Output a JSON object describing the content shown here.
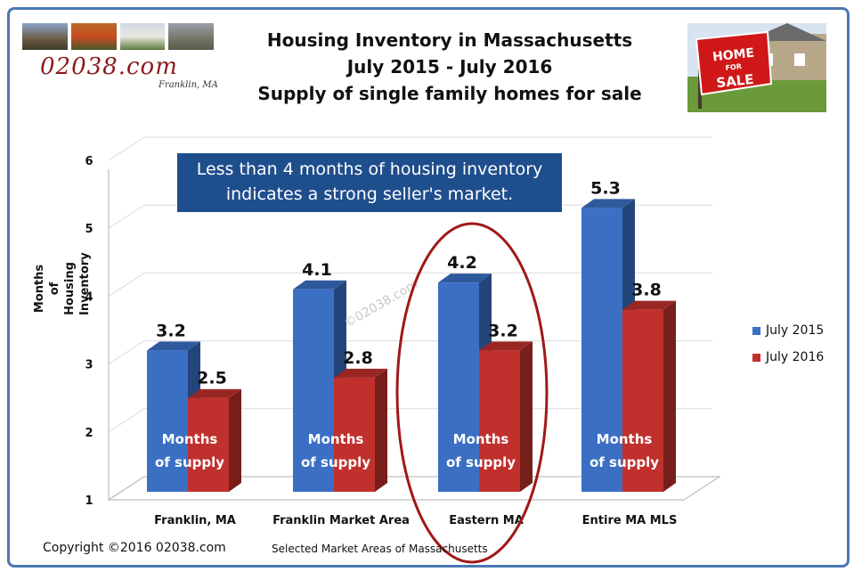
{
  "header": {
    "site_name": "02038.com",
    "site_location": "Franklin, MA",
    "sign_text": "HOME FOR SALE"
  },
  "chart_data": {
    "type": "bar",
    "title": "Housing Inventory in Massachusetts",
    "subtitle_1": "July 2015 - July 2016",
    "subtitle_2": "Supply of single family homes for sale",
    "categories": [
      "Franklin, MA",
      "Franklin Market Area",
      "Eastern MA",
      "Entire MA MLS"
    ],
    "series": [
      {
        "name": "July 2015",
        "values": [
          3.2,
          4.1,
          4.2,
          5.3
        ],
        "color": "#3a6fc4"
      },
      {
        "name": "July 2016",
        "values": [
          2.5,
          2.8,
          3.2,
          3.8
        ],
        "color": "#c0302c"
      }
    ],
    "ylabel": "Months of Housing Inventory",
    "xlabel": "Selected Market Areas of Massachusetts",
    "ylim": [
      1,
      6
    ],
    "yticks": [
      "1",
      "2",
      "3",
      "4",
      "5",
      "6"
    ],
    "bar_text": "Months of supply",
    "annotation": "Less than 4 months of housing inventory indicates a strong seller's market.",
    "watermark": "©02038.com",
    "highlighted_category": "Eastern MA",
    "legend_position": "right",
    "grid": true
  },
  "footer": {
    "copyright": "Copyright ©2016  02038.com"
  },
  "colors": {
    "frame": "#4a78b5",
    "callout": "#1f4e8c",
    "highlight_ellipse": "#a01818"
  }
}
